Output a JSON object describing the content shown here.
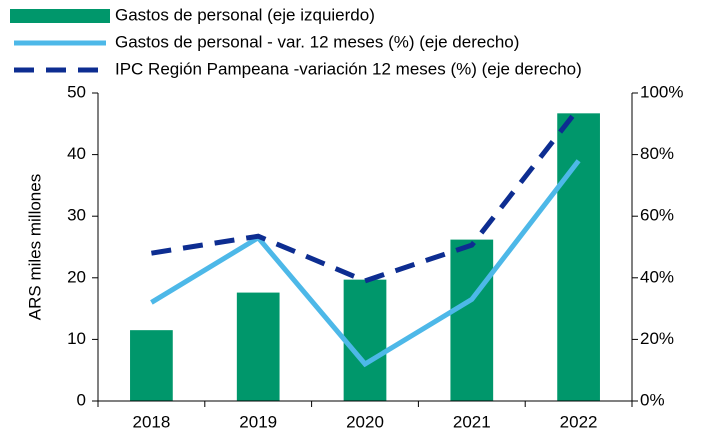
{
  "chart_data": {
    "type": "bar",
    "categories": [
      "2018",
      "2019",
      "2020",
      "2021",
      "2022"
    ],
    "ylabel": "ARS miles millones",
    "ylim": [
      0,
      50
    ],
    "yticks": [
      0,
      10,
      20,
      30,
      40,
      50
    ],
    "y2lim": [
      0,
      100
    ],
    "y2ticks": [
      {
        "value": 0,
        "label": "0%"
      },
      {
        "value": 20,
        "label": "20%"
      },
      {
        "value": 40,
        "label": "40%"
      },
      {
        "value": 60,
        "label": "60%"
      },
      {
        "value": 80,
        "label": "80%"
      },
      {
        "value": 100,
        "label": "100%"
      }
    ],
    "grid": false,
    "series": [
      {
        "name": "Gastos de personal (eje izquierdo)",
        "type": "bar",
        "color": "#00976b",
        "values": [
          11.5,
          17.6,
          19.7,
          26.2,
          46.7
        ]
      },
      {
        "name": "Gastos de personal - var. 12 meses (%) (eje derecho)",
        "type": "line",
        "axis": "y2",
        "color": "#4db8e8",
        "dashed": false,
        "values": [
          32,
          53,
          12,
          33,
          78
        ]
      },
      {
        "name": "IPC Región Pampeana -variación 12 meses (%) (eje derecho)",
        "type": "line",
        "axis": "y2",
        "color": "#0d2d91",
        "dashed": true,
        "values": [
          48,
          53.5,
          39,
          50.6,
          95
        ]
      }
    ]
  }
}
